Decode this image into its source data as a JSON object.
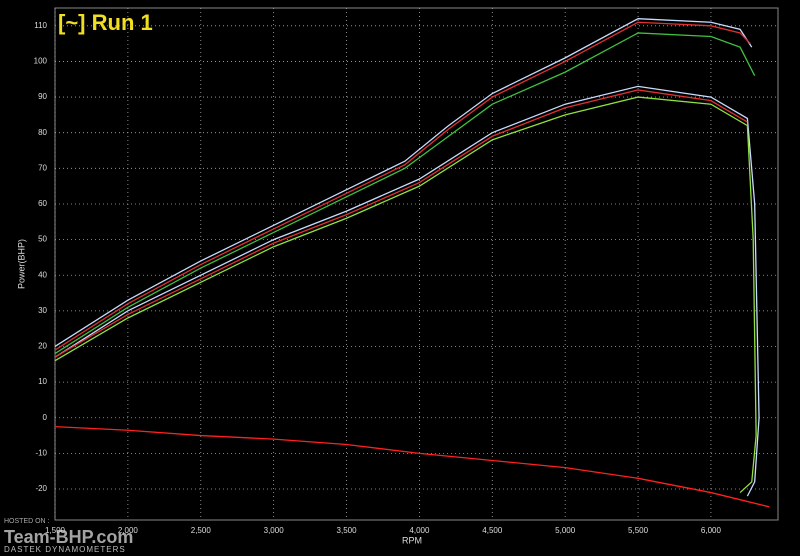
{
  "chart_data": {
    "type": "line",
    "title": "[~] Run 1",
    "ylabel": "Power(BHP)",
    "xlabel": "RPM",
    "watermark": "Team-BHP.com",
    "footer": "DASTEK DYNAMOMETERS",
    "hosted": "HOSTED ON :",
    "xlim": [
      1500,
      6460
    ],
    "ylim": [
      -28.7,
      115
    ],
    "grid": true,
    "xticks": [
      {
        "value": 1500,
        "label": "1,500"
      },
      {
        "value": 2000,
        "label": "2,000"
      },
      {
        "value": 2500,
        "label": "2,500"
      },
      {
        "value": 3000,
        "label": "3,000"
      },
      {
        "value": 3500,
        "label": "3,500"
      },
      {
        "value": 4000,
        "label": "4,000"
      },
      {
        "value": 4500,
        "label": "4,500"
      },
      {
        "value": 5000,
        "label": "5,000"
      },
      {
        "value": 5500,
        "label": "5,500"
      },
      {
        "value": 6000,
        "label": "6,000"
      }
    ],
    "yticks": [
      -20,
      -10,
      0,
      10,
      20,
      30,
      40,
      50,
      60,
      70,
      80,
      90,
      100,
      110
    ],
    "series": [
      {
        "color": "#c8dcff",
        "x": [
          1500,
          2000,
          2500,
          3000,
          3500,
          3900,
          4200,
          4500,
          5000,
          5500,
          6000,
          6200,
          6280
        ],
        "values": [
          20,
          33,
          44,
          54,
          64,
          72,
          82,
          91,
          101,
          112,
          111,
          109,
          104
        ]
      },
      {
        "color": "#e03030",
        "x": [
          1500,
          2000,
          2500,
          3000,
          3500,
          3900,
          4200,
          4500,
          5000,
          5500,
          6000,
          6200,
          6270
        ],
        "values": [
          19,
          32,
          43,
          53,
          63,
          71,
          81,
          90,
          100,
          111,
          110,
          108,
          105
        ]
      },
      {
        "color": "#40c040",
        "x": [
          1500,
          2000,
          2500,
          3000,
          3500,
          3900,
          4200,
          4500,
          5000,
          5500,
          6000,
          6200,
          6300
        ],
        "values": [
          18,
          31,
          42,
          52,
          62,
          70,
          79,
          88,
          97,
          108,
          107,
          104,
          96
        ]
      },
      {
        "color": "#c8dcff",
        "x": [
          1500,
          2000,
          2500,
          3000,
          3500,
          4000,
          4500,
          5000,
          5500,
          6000,
          6250,
          6300,
          6330,
          6300,
          6250
        ],
        "values": [
          17,
          30,
          40,
          50,
          58,
          67,
          80,
          88,
          93,
          90,
          84,
          60,
          0,
          -18,
          -22
        ]
      },
      {
        "color": "#e03030",
        "x": [
          1500,
          2000,
          2500,
          3000,
          3500,
          4000,
          4500,
          5000,
          5500,
          6000,
          6250
        ],
        "values": [
          17,
          29,
          39,
          49,
          57,
          66,
          79,
          87,
          92,
          89,
          83
        ]
      },
      {
        "color": "#90e040",
        "x": [
          1500,
          2000,
          2500,
          3000,
          3500,
          4000,
          4500,
          5000,
          5500,
          6000,
          6250,
          6290,
          6310,
          6280,
          6200
        ],
        "values": [
          16,
          28,
          38,
          48,
          56,
          65,
          78,
          85,
          90,
          88,
          82,
          50,
          -5,
          -18,
          -21
        ]
      },
      {
        "color": "#ff2020",
        "x": [
          1500,
          2000,
          2500,
          3000,
          3500,
          4000,
          4500,
          5000,
          5500,
          6000,
          6200,
          6400
        ],
        "values": [
          -2.5,
          -3.5,
          -5,
          -6,
          -7.5,
          -10,
          -12,
          -14,
          -17,
          -21,
          -23,
          -25
        ]
      }
    ]
  }
}
